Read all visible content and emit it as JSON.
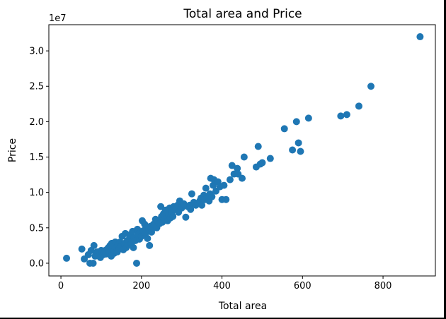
{
  "chart_data": {
    "type": "scatter",
    "title": "Total area and Price",
    "xlabel": "Total area",
    "ylabel": "Price",
    "y_scale_label": "1e7",
    "x_ticks": [
      0,
      200,
      400,
      600,
      800
    ],
    "x_tick_labels": [
      "0",
      "200",
      "400",
      "600",
      "800"
    ],
    "y_ticks": [
      0.0,
      0.5,
      1.0,
      1.5,
      2.0,
      2.5,
      3.0
    ],
    "y_tick_labels": [
      "0.0",
      "0.5",
      "1.0",
      "1.5",
      "2.0",
      "2.5",
      "3.0"
    ],
    "xlim": [
      -30,
      930
    ],
    "ylim": [
      -0.18,
      3.37
    ],
    "grid": false,
    "marker_color": "#1f77b4",
    "series": [
      {
        "name": "Price",
        "x": [
          14,
          52,
          58,
          68,
          72,
          75,
          80,
          82,
          85,
          88,
          90,
          95,
          98,
          100,
          102,
          105,
          108,
          110,
          112,
          115,
          118,
          120,
          122,
          125,
          126,
          128,
          130,
          132,
          133,
          135,
          138,
          140,
          142,
          145,
          147,
          150,
          152,
          155,
          158,
          160,
          162,
          165,
          168,
          170,
          172,
          175,
          178,
          180,
          182,
          185,
          188,
          190,
          192,
          195,
          198,
          200,
          202,
          205,
          208,
          210,
          212,
          215,
          218,
          220,
          222,
          225,
          228,
          230,
          235,
          238,
          240,
          245,
          248,
          250,
          252,
          255,
          258,
          260,
          265,
          268,
          270,
          272,
          275,
          278,
          280,
          285,
          290,
          292,
          295,
          300,
          305,
          310,
          315,
          320,
          322,
          325,
          330,
          335,
          340,
          345,
          348,
          350,
          355,
          358,
          360,
          365,
          368,
          370,
          372,
          375,
          378,
          380,
          385,
          390,
          395,
          400,
          405,
          410,
          420,
          425,
          430,
          438,
          440,
          450,
          455,
          485,
          490,
          495,
          500,
          520,
          555,
          575,
          585,
          590,
          595,
          615,
          695,
          710,
          740,
          770,
          892
        ],
        "y": [
          0.07,
          0.2,
          0.06,
          0.12,
          0.0,
          0.18,
          0.0,
          0.25,
          0.1,
          0.14,
          0.16,
          0.1,
          0.08,
          0.18,
          0.16,
          0.12,
          0.15,
          0.18,
          0.13,
          0.2,
          0.22,
          0.16,
          0.25,
          0.1,
          0.28,
          0.2,
          0.24,
          0.14,
          0.18,
          0.3,
          0.22,
          0.16,
          0.26,
          0.2,
          0.3,
          0.24,
          0.38,
          0.19,
          0.28,
          0.42,
          0.22,
          0.32,
          0.26,
          0.4,
          0.34,
          0.28,
          0.45,
          0.22,
          0.36,
          0.32,
          0.0,
          0.48,
          0.4,
          0.34,
          0.44,
          0.38,
          0.6,
          0.46,
          0.55,
          0.42,
          0.5,
          0.35,
          0.48,
          0.25,
          0.52,
          0.44,
          0.5,
          0.55,
          0.62,
          0.5,
          0.6,
          0.56,
          0.8,
          0.66,
          0.58,
          0.7,
          0.62,
          0.75,
          0.6,
          0.68,
          0.78,
          0.64,
          0.72,
          0.66,
          0.8,
          0.76,
          0.82,
          0.72,
          0.88,
          0.78,
          0.84,
          0.65,
          0.8,
          0.82,
          0.76,
          0.98,
          0.86,
          0.82,
          0.84,
          0.88,
          0.92,
          0.82,
          0.96,
          0.9,
          1.06,
          0.92,
          0.88,
          0.98,
          1.2,
          0.94,
          1.1,
          1.18,
          1.02,
          1.15,
          1.08,
          0.9,
          1.1,
          0.9,
          1.18,
          1.38,
          1.26,
          1.34,
          1.26,
          1.2,
          1.5,
          1.36,
          1.65,
          1.4,
          1.42,
          1.48,
          1.9,
          1.6,
          2.0,
          1.7,
          1.58,
          2.05,
          2.08,
          2.1,
          2.22,
          2.5,
          3.2
        ]
      }
    ]
  }
}
